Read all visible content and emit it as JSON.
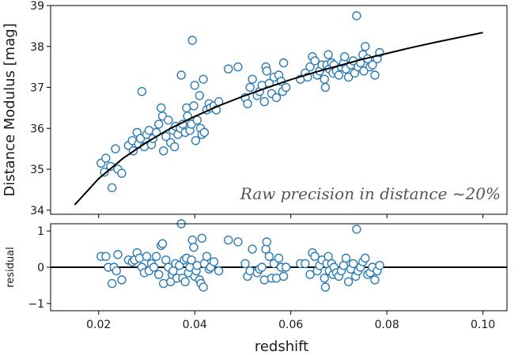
{
  "chart_data": [
    {
      "type": "scatter",
      "panel": "main",
      "xlabel": "",
      "ylabel": "Distance Modulus [mag]",
      "xlim": [
        0.01,
        0.105
      ],
      "ylim": [
        33.9,
        39.0
      ],
      "xticks": [
        0.02,
        0.04,
        0.06,
        0.08,
        0.1
      ],
      "yticks": [
        34,
        35,
        36,
        37,
        38,
        39
      ],
      "ytick_labels": [
        "34",
        "35",
        "36",
        "37",
        "38",
        "39"
      ],
      "annotation": "Raw precision in distance ~20%",
      "grid": false,
      "model_curve": {
        "x": [
          0.015,
          0.02,
          0.025,
          0.03,
          0.035,
          0.04,
          0.045,
          0.05,
          0.055,
          0.06,
          0.065,
          0.07,
          0.075,
          0.08,
          0.085,
          0.09,
          0.095,
          0.1
        ],
        "y": [
          34.13,
          34.77,
          35.26,
          35.66,
          36.0,
          36.29,
          36.55,
          36.78,
          36.99,
          37.19,
          37.37,
          37.53,
          37.69,
          37.83,
          37.97,
          38.1,
          38.22,
          38.34
        ]
      },
      "points": [
        [
          0.0205,
          35.15
        ],
        [
          0.0212,
          34.93
        ],
        [
          0.0215,
          35.27
        ],
        [
          0.0225,
          35.07
        ],
        [
          0.0228,
          34.55
        ],
        [
          0.0235,
          35.5
        ],
        [
          0.024,
          35.0
        ],
        [
          0.0248,
          34.9
        ],
        [
          0.0262,
          35.58
        ],
        [
          0.027,
          35.7
        ],
        [
          0.0272,
          35.45
        ],
        [
          0.028,
          35.9
        ],
        [
          0.0283,
          35.62
        ],
        [
          0.0287,
          35.75
        ],
        [
          0.029,
          36.9
        ],
        [
          0.0295,
          35.55
        ],
        [
          0.03,
          35.85
        ],
        [
          0.0305,
          35.95
        ],
        [
          0.031,
          35.6
        ],
        [
          0.0313,
          35.75
        ],
        [
          0.032,
          35.9
        ],
        [
          0.0325,
          36.1
        ],
        [
          0.033,
          36.5
        ],
        [
          0.0333,
          36.3
        ],
        [
          0.0335,
          35.45
        ],
        [
          0.034,
          35.8
        ],
        [
          0.0345,
          36.2
        ],
        [
          0.035,
          35.65
        ],
        [
          0.0355,
          35.95
        ],
        [
          0.0358,
          35.55
        ],
        [
          0.036,
          36.05
        ],
        [
          0.0365,
          35.85
        ],
        [
          0.037,
          36.0
        ],
        [
          0.0372,
          37.3
        ],
        [
          0.0375,
          36.1
        ],
        [
          0.038,
          35.9
        ],
        [
          0.0383,
          36.5
        ],
        [
          0.0385,
          36.3
        ],
        [
          0.039,
          35.95
        ],
        [
          0.0393,
          36.1
        ],
        [
          0.0395,
          38.15
        ],
        [
          0.0398,
          36.55
        ],
        [
          0.04,
          37.05
        ],
        [
          0.0402,
          35.7
        ],
        [
          0.0405,
          36.2
        ],
        [
          0.041,
          36.8
        ],
        [
          0.0412,
          36.0
        ],
        [
          0.0415,
          35.85
        ],
        [
          0.0418,
          37.2
        ],
        [
          0.042,
          35.9
        ],
        [
          0.0425,
          36.45
        ],
        [
          0.043,
          36.6
        ],
        [
          0.0433,
          36.5
        ],
        [
          0.044,
          36.55
        ],
        [
          0.0445,
          36.45
        ],
        [
          0.045,
          36.65
        ],
        [
          0.047,
          37.45
        ],
        [
          0.049,
          37.5
        ],
        [
          0.0505,
          36.75
        ],
        [
          0.051,
          36.6
        ],
        [
          0.0515,
          37.0
        ],
        [
          0.052,
          37.2
        ],
        [
          0.053,
          36.8
        ],
        [
          0.0535,
          36.9
        ],
        [
          0.054,
          37.05
        ],
        [
          0.0545,
          36.65
        ],
        [
          0.0548,
          37.5
        ],
        [
          0.055,
          37.4
        ],
        [
          0.0555,
          37.1
        ],
        [
          0.056,
          36.85
        ],
        [
          0.0565,
          37.25
        ],
        [
          0.057,
          36.75
        ],
        [
          0.0575,
          37.3
        ],
        [
          0.058,
          37.15
        ],
        [
          0.0583,
          36.9
        ],
        [
          0.0585,
          37.6
        ],
        [
          0.059,
          37.0
        ],
        [
          0.062,
          37.2
        ],
        [
          0.063,
          37.35
        ],
        [
          0.0635,
          37.25
        ],
        [
          0.064,
          37.5
        ],
        [
          0.0645,
          37.75
        ],
        [
          0.065,
          37.65
        ],
        [
          0.0655,
          37.3
        ],
        [
          0.066,
          37.4
        ],
        [
          0.0665,
          37.55
        ],
        [
          0.067,
          37.2
        ],
        [
          0.0672,
          37.0
        ],
        [
          0.0675,
          37.55
        ],
        [
          0.0678,
          37.8
        ],
        [
          0.068,
          37.45
        ],
        [
          0.0685,
          37.6
        ],
        [
          0.0688,
          37.35
        ],
        [
          0.069,
          37.55
        ],
        [
          0.0695,
          37.4
        ],
        [
          0.07,
          37.3
        ],
        [
          0.0705,
          37.5
        ],
        [
          0.071,
          37.6
        ],
        [
          0.0712,
          37.75
        ],
        [
          0.0715,
          37.45
        ],
        [
          0.072,
          37.25
        ],
        [
          0.0725,
          37.55
        ],
        [
          0.073,
          37.65
        ],
        [
          0.0733,
          37.35
        ],
        [
          0.0737,
          38.75
        ],
        [
          0.074,
          37.5
        ],
        [
          0.0745,
          37.6
        ],
        [
          0.075,
          37.8
        ],
        [
          0.0752,
          37.4
        ],
        [
          0.0755,
          38.0
        ],
        [
          0.076,
          37.7
        ],
        [
          0.0765,
          37.5
        ],
        [
          0.077,
          37.55
        ],
        [
          0.0775,
          37.3
        ],
        [
          0.078,
          37.7
        ],
        [
          0.0785,
          37.85
        ]
      ]
    },
    {
      "type": "scatter",
      "panel": "residual",
      "xlabel": "redshift",
      "ylabel": "residual",
      "xlim": [
        0.01,
        0.105
      ],
      "ylim": [
        -1.2,
        1.2
      ],
      "xticks": [
        0.02,
        0.04,
        0.06,
        0.08,
        0.1
      ],
      "xtick_labels": [
        "0.02",
        "0.04",
        "0.06",
        "0.08",
        "0.10"
      ],
      "yticks": [
        -1,
        0,
        1
      ],
      "ytick_labels": [
        "−1",
        "0",
        "1"
      ],
      "zero_line": 0,
      "grid": false,
      "points": [
        [
          0.0205,
          0.3
        ],
        [
          0.0215,
          0.3
        ],
        [
          0.022,
          0.0
        ],
        [
          0.0228,
          -0.45
        ],
        [
          0.0232,
          0.0
        ],
        [
          0.0237,
          -0.1
        ],
        [
          0.024,
          0.35
        ],
        [
          0.0248,
          -0.35
        ],
        [
          0.0262,
          0.2
        ],
        [
          0.027,
          0.15
        ],
        [
          0.0275,
          0.2
        ],
        [
          0.028,
          0.4
        ],
        [
          0.0285,
          0.25
        ],
        [
          0.029,
          0.0
        ],
        [
          0.0295,
          -0.15
        ],
        [
          0.03,
          0.3
        ],
        [
          0.0305,
          -0.1
        ],
        [
          0.031,
          0.1
        ],
        [
          0.0315,
          0.0
        ],
        [
          0.032,
          0.3
        ],
        [
          0.0325,
          -0.2
        ],
        [
          0.033,
          0.6
        ],
        [
          0.0333,
          0.65
        ],
        [
          0.0335,
          -0.45
        ],
        [
          0.034,
          0.2
        ],
        [
          0.0345,
          0.0
        ],
        [
          0.035,
          -0.4
        ],
        [
          0.0353,
          -0.2
        ],
        [
          0.0355,
          -0.1
        ],
        [
          0.036,
          0.1
        ],
        [
          0.0363,
          -0.3
        ],
        [
          0.0368,
          0.05
        ],
        [
          0.0372,
          1.2
        ],
        [
          0.0375,
          -0.3
        ],
        [
          0.0378,
          0.2
        ],
        [
          0.038,
          -0.4
        ],
        [
          0.0383,
          0.25
        ],
        [
          0.0387,
          -0.15
        ],
        [
          0.039,
          0.0
        ],
        [
          0.0393,
          0.2
        ],
        [
          0.0395,
          0.75
        ],
        [
          0.0398,
          0.55
        ],
        [
          0.04,
          -0.25
        ],
        [
          0.0403,
          -0.1
        ],
        [
          0.0405,
          0.05
        ],
        [
          0.041,
          -0.35
        ],
        [
          0.0413,
          -0.45
        ],
        [
          0.0415,
          0.8
        ],
        [
          0.0418,
          -0.55
        ],
        [
          0.042,
          0.1
        ],
        [
          0.0425,
          0.3
        ],
        [
          0.043,
          -0.05
        ],
        [
          0.0433,
          0.0
        ],
        [
          0.044,
          0.15
        ],
        [
          0.045,
          -0.1
        ],
        [
          0.047,
          0.75
        ],
        [
          0.049,
          0.7
        ],
        [
          0.0505,
          0.1
        ],
        [
          0.051,
          -0.25
        ],
        [
          0.0515,
          -0.1
        ],
        [
          0.052,
          0.5
        ],
        [
          0.053,
          -0.15
        ],
        [
          0.0535,
          -0.05
        ],
        [
          0.054,
          0.0
        ],
        [
          0.0545,
          -0.35
        ],
        [
          0.0548,
          0.5
        ],
        [
          0.055,
          0.7
        ],
        [
          0.0555,
          0.3
        ],
        [
          0.056,
          -0.3
        ],
        [
          0.0565,
          0.1
        ],
        [
          0.057,
          -0.3
        ],
        [
          0.0575,
          0.25
        ],
        [
          0.058,
          0.0
        ],
        [
          0.0585,
          -0.25
        ],
        [
          0.059,
          0.0
        ],
        [
          0.062,
          0.1
        ],
        [
          0.063,
          0.1
        ],
        [
          0.064,
          -0.2
        ],
        [
          0.0645,
          0.4
        ],
        [
          0.065,
          0.3
        ],
        [
          0.0655,
          -0.1
        ],
        [
          0.066,
          0.05
        ],
        [
          0.0665,
          0.2
        ],
        [
          0.067,
          -0.3
        ],
        [
          0.0672,
          -0.55
        ],
        [
          0.0675,
          0.1
        ],
        [
          0.0678,
          0.3
        ],
        [
          0.068,
          -0.1
        ],
        [
          0.0685,
          0.1
        ],
        [
          0.0688,
          -0.2
        ],
        [
          0.069,
          0.0
        ],
        [
          0.0695,
          -0.15
        ],
        [
          0.07,
          -0.25
        ],
        [
          0.0705,
          -0.1
        ],
        [
          0.071,
          0.05
        ],
        [
          0.0715,
          0.25
        ],
        [
          0.072,
          -0.4
        ],
        [
          0.0725,
          -0.05
        ],
        [
          0.073,
          0.1
        ],
        [
          0.0735,
          -0.25
        ],
        [
          0.0737,
          1.05
        ],
        [
          0.074,
          -0.1
        ],
        [
          0.0745,
          0.0
        ],
        [
          0.075,
          0.15
        ],
        [
          0.0755,
          0.25
        ],
        [
          0.076,
          -0.2
        ],
        [
          0.0765,
          -0.15
        ],
        [
          0.077,
          0.0
        ],
        [
          0.0775,
          -0.35
        ],
        [
          0.078,
          -0.1
        ],
        [
          0.0785,
          0.05
        ]
      ]
    }
  ]
}
